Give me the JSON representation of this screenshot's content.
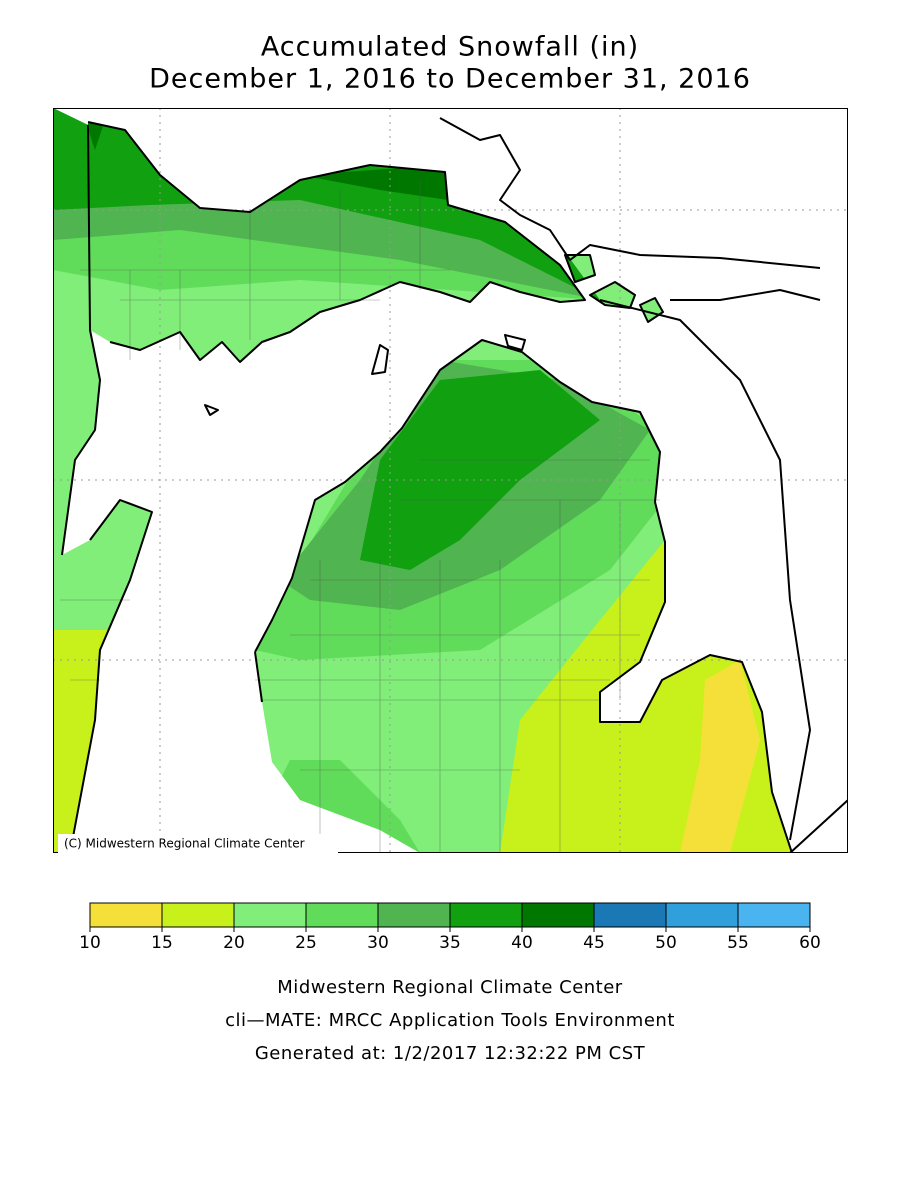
{
  "title": [
    "Accumulated Snowfall (in)",
    "December 1, 2016 to December 31, 2016"
  ],
  "map": {
    "credit": "(C) Midwestern Regional Climate Center"
  },
  "legend": {
    "ticks": [
      10,
      15,
      20,
      25,
      30,
      35,
      40,
      45,
      50,
      55,
      60
    ],
    "colors": [
      "#f5e03a",
      "#c8f01a",
      "#80ee78",
      "#60dc5a",
      "#50b450",
      "#10a010",
      "#007800",
      "#1a78b4",
      "#2fa0dc",
      "#4ab4f0"
    ]
  },
  "footer": [
    "Midwestern Regional Climate Center",
    "cli—MATE: MRCC Application Tools Environment",
    "Generated at: 1/2/2017 12:32:22 PM CST"
  ]
}
